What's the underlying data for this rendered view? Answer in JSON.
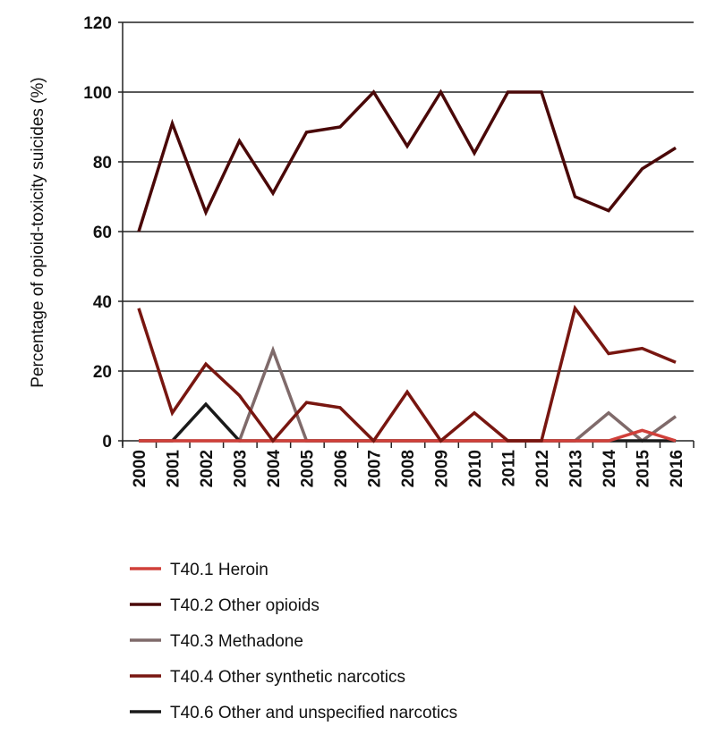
{
  "chart_data": {
    "type": "line",
    "title": "",
    "xlabel": "",
    "ylabel": "Percentage of opioid-toxicity suicides (%)",
    "ylim": [
      0,
      120
    ],
    "yticks": [
      0,
      20,
      40,
      60,
      80,
      100,
      120
    ],
    "grid": true,
    "legend_position": "bottom",
    "categories": [
      "2000",
      "2001",
      "2002",
      "2003",
      "2004",
      "2005",
      "2006",
      "2007",
      "2008",
      "2009",
      "2010",
      "2011",
      "2012",
      "2013",
      "2014",
      "2015",
      "2016"
    ],
    "series": [
      {
        "name": "T40.1 Heroin",
        "color": "#d0403a",
        "values": [
          0,
          0,
          0,
          0,
          0,
          0,
          0,
          0,
          0,
          0,
          0,
          0,
          0,
          0,
          0,
          3,
          0
        ]
      },
      {
        "name": "T40.2 Other opioids",
        "color": "#4a0808",
        "values": [
          60,
          91,
          65.5,
          86,
          71,
          88.5,
          90,
          100,
          84.5,
          100,
          82.5,
          100,
          100,
          70,
          66,
          78,
          84
        ]
      },
      {
        "name": "T40.3 Methadone",
        "color": "#7f6a6a",
        "values": [
          0,
          0,
          0,
          0,
          26,
          0,
          0,
          0,
          0,
          0,
          0,
          0,
          0,
          0,
          8,
          0,
          7
        ]
      },
      {
        "name": "T40.4 Other synthetic narcotics",
        "color": "#781610",
        "values": [
          38,
          8,
          22,
          13,
          0,
          11,
          9.5,
          0,
          14,
          0,
          8,
          0,
          0,
          38,
          25,
          26.5,
          22.5
        ]
      },
      {
        "name": "T40.6 Other and unspecified narcotics",
        "color": "#1a1a1a",
        "values": [
          0,
          0,
          10.5,
          0,
          0,
          0,
          0,
          0,
          0,
          0,
          0,
          0,
          0,
          0,
          0,
          0,
          0
        ]
      }
    ]
  }
}
